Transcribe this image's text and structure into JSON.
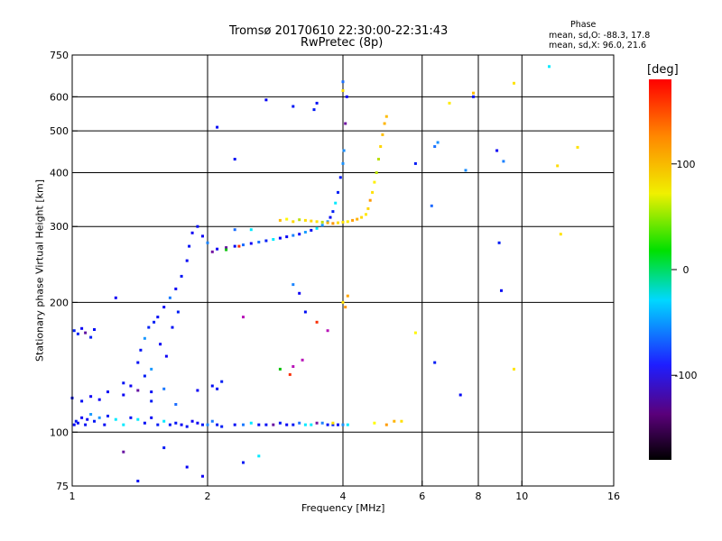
{
  "chart_data": {
    "type": "scatter",
    "title": "Tromsø 20170610 22:30:00-22:31:43",
    "subtitle": "RwPretec (8p)",
    "xlabel": "Frequency [MHz]",
    "ylabel": "Stationary phase Virtual Height [km]",
    "x_scale": "log",
    "y_scale": "log",
    "xlim": [
      1,
      16
    ],
    "ylim": [
      75,
      750
    ],
    "x_ticks": [
      "1",
      "2",
      "4",
      "6",
      "8",
      "10",
      "16"
    ],
    "y_ticks": [
      "75",
      "100",
      "200",
      "300",
      "400",
      "500",
      "600",
      "750"
    ],
    "x_gridlines": [
      2,
      4,
      6,
      8,
      10
    ],
    "y_gridlines": [
      100,
      200,
      300,
      400,
      500,
      600
    ],
    "grid": true,
    "phase_stats": {
      "heading": "Phase",
      "o_line": "mean, sd,O: -88.3, 17.8",
      "x_line": "mean, sd,X:  96.0, 21.6"
    },
    "colorbar": {
      "label": "[deg]",
      "range": [
        -180,
        180
      ],
      "ticks": [
        "100",
        "0",
        "-100"
      ],
      "colormap": "rainbow (black-purple-blue-cyan-green-yellow-orange-red)"
    },
    "series": [
      {
        "name": "O",
        "phase_mean": -88.3,
        "phase_sd": 17.8,
        "points": [
          [
            1.01,
            104
          ],
          [
            1.02,
            106
          ],
          [
            1.03,
            105
          ],
          [
            1.05,
            108
          ],
          [
            1.07,
            104
          ],
          [
            1.08,
            107
          ],
          [
            1.1,
            110
          ],
          [
            1.12,
            106
          ],
          [
            1.15,
            108
          ],
          [
            1.18,
            104
          ],
          [
            1.2,
            109
          ],
          [
            1.25,
            107
          ],
          [
            1.3,
            104
          ],
          [
            1.35,
            108
          ],
          [
            1.4,
            107
          ],
          [
            1.45,
            105
          ],
          [
            1.5,
            108
          ],
          [
            1.55,
            104
          ],
          [
            1.6,
            106
          ],
          [
            1.65,
            104
          ],
          [
            1.7,
            105
          ],
          [
            1.75,
            104
          ],
          [
            1.8,
            103
          ],
          [
            1.85,
            106
          ],
          [
            1.9,
            105
          ],
          [
            1.95,
            104
          ],
          [
            2.0,
            104
          ],
          [
            2.05,
            106
          ],
          [
            2.1,
            104
          ],
          [
            2.15,
            103
          ],
          [
            2.3,
            104
          ],
          [
            2.4,
            104
          ],
          [
            2.5,
            105
          ],
          [
            2.6,
            104
          ],
          [
            2.7,
            104
          ],
          [
            2.8,
            104
          ],
          [
            2.9,
            105
          ],
          [
            3.0,
            104
          ],
          [
            3.1,
            104
          ],
          [
            3.2,
            105
          ],
          [
            3.3,
            104
          ],
          [
            3.4,
            104
          ],
          [
            3.5,
            105
          ],
          [
            3.6,
            105
          ],
          [
            3.7,
            104
          ],
          [
            3.8,
            104
          ],
          [
            3.9,
            104
          ],
          [
            4.0,
            104
          ],
          [
            4.1,
            104
          ],
          [
            1.0,
            120
          ],
          [
            1.05,
            118
          ],
          [
            1.1,
            121
          ],
          [
            1.15,
            119
          ],
          [
            1.2,
            124
          ],
          [
            1.3,
            122
          ],
          [
            1.4,
            125
          ],
          [
            1.5,
            118
          ],
          [
            1.6,
            126
          ],
          [
            1.7,
            116
          ],
          [
            1.9,
            125
          ],
          [
            1.01,
            172
          ],
          [
            1.03,
            169
          ],
          [
            1.05,
            174
          ],
          [
            1.07,
            170
          ],
          [
            1.1,
            166
          ],
          [
            1.12,
            173
          ],
          [
            1.4,
            145
          ],
          [
            1.42,
            155
          ],
          [
            1.45,
            165
          ],
          [
            1.48,
            175
          ],
          [
            1.5,
            140
          ],
          [
            1.52,
            180
          ],
          [
            1.55,
            185
          ],
          [
            1.57,
            160
          ],
          [
            1.6,
            195
          ],
          [
            1.62,
            150
          ],
          [
            1.65,
            205
          ],
          [
            1.67,
            175
          ],
          [
            1.7,
            215
          ],
          [
            1.72,
            190
          ],
          [
            1.75,
            230
          ],
          [
            1.8,
            250
          ],
          [
            1.82,
            270
          ],
          [
            1.85,
            290
          ],
          [
            1.9,
            300
          ],
          [
            1.95,
            285
          ],
          [
            2.0,
            275
          ],
          [
            2.05,
            262
          ],
          [
            2.1,
            266
          ],
          [
            2.2,
            268
          ],
          [
            2.3,
            270
          ],
          [
            2.4,
            272
          ],
          [
            2.5,
            274
          ],
          [
            2.6,
            276
          ],
          [
            2.7,
            278
          ],
          [
            2.8,
            280
          ],
          [
            2.9,
            282
          ],
          [
            3.0,
            284
          ],
          [
            3.1,
            286
          ],
          [
            3.2,
            288
          ],
          [
            3.3,
            291
          ],
          [
            3.4,
            294
          ],
          [
            3.5,
            297
          ],
          [
            3.6,
            302
          ],
          [
            3.7,
            308
          ],
          [
            3.75,
            315
          ],
          [
            3.8,
            325
          ],
          [
            3.85,
            340
          ],
          [
            3.9,
            360
          ],
          [
            3.95,
            390
          ],
          [
            4.0,
            420
          ],
          [
            4.02,
            450
          ],
          [
            4.05,
            520
          ],
          [
            4.08,
            600
          ],
          [
            1.3,
            130
          ],
          [
            1.35,
            128
          ],
          [
            1.45,
            135
          ],
          [
            1.5,
            124
          ],
          [
            2.05,
            128
          ],
          [
            2.1,
            126
          ],
          [
            2.15,
            131
          ],
          [
            3.1,
            220
          ],
          [
            3.2,
            210
          ],
          [
            3.3,
            190
          ],
          [
            3.5,
            580
          ],
          [
            3.45,
            560
          ],
          [
            4.0,
            650
          ],
          [
            2.1,
            510
          ],
          [
            2.3,
            430
          ],
          [
            2.7,
            590
          ],
          [
            3.1,
            570
          ],
          [
            2.3,
            295
          ],
          [
            2.5,
            295
          ],
          [
            1.25,
            205
          ],
          [
            1.3,
            90
          ],
          [
            1.6,
            92
          ],
          [
            1.8,
            83
          ],
          [
            1.95,
            79
          ],
          [
            1.4,
            77
          ],
          [
            2.4,
            85
          ],
          [
            2.6,
            88
          ],
          [
            6.4,
            460
          ],
          [
            6.5,
            470
          ],
          [
            5.8,
            420
          ],
          [
            6.3,
            335
          ],
          [
            7.5,
            405
          ],
          [
            7.3,
            122
          ],
          [
            6.4,
            145
          ],
          [
            8.8,
            450
          ],
          [
            9.1,
            425
          ],
          [
            9.0,
            213
          ],
          [
            8.9,
            275
          ],
          [
            7.8,
            600
          ],
          [
            11.5,
            705
          ]
        ]
      },
      {
        "name": "X",
        "phase_mean": 96.0,
        "phase_sd": 21.6,
        "points": [
          [
            2.9,
            310
          ],
          [
            3.0,
            312
          ],
          [
            3.1,
            308
          ],
          [
            3.2,
            311
          ],
          [
            3.3,
            310
          ],
          [
            3.4,
            309
          ],
          [
            3.5,
            308
          ],
          [
            3.6,
            307
          ],
          [
            3.7,
            306
          ],
          [
            3.8,
            305
          ],
          [
            3.9,
            306
          ],
          [
            4.0,
            307
          ],
          [
            4.1,
            308
          ],
          [
            4.2,
            310
          ],
          [
            4.3,
            312
          ],
          [
            4.4,
            315
          ],
          [
            4.5,
            320
          ],
          [
            4.55,
            330
          ],
          [
            4.6,
            345
          ],
          [
            4.65,
            360
          ],
          [
            4.7,
            380
          ],
          [
            4.75,
            400
          ],
          [
            4.8,
            430
          ],
          [
            4.85,
            460
          ],
          [
            4.9,
            490
          ],
          [
            4.95,
            520
          ],
          [
            5.0,
            540
          ],
          [
            4.0,
            200
          ],
          [
            4.05,
            195
          ],
          [
            4.1,
            207
          ],
          [
            4.7,
            105
          ],
          [
            5.0,
            104
          ],
          [
            5.2,
            106
          ],
          [
            5.4,
            106
          ],
          [
            3.8,
            105
          ],
          [
            4.0,
            620
          ],
          [
            6.9,
            580
          ],
          [
            7.8,
            612
          ],
          [
            9.6,
            645
          ],
          [
            12.0,
            415
          ],
          [
            12.2,
            288
          ],
          [
            13.3,
            458
          ],
          [
            9.6,
            140
          ],
          [
            5.8,
            170
          ]
        ]
      }
    ],
    "misc_points": [
      [
        3.1,
        142
      ],
      [
        3.25,
        147
      ],
      [
        3.5,
        180
      ],
      [
        3.7,
        172
      ],
      [
        2.9,
        140
      ],
      [
        3.05,
        136
      ],
      [
        2.4,
        185
      ],
      [
        2.2,
        265
      ],
      [
        2.35,
        270
      ]
    ]
  }
}
